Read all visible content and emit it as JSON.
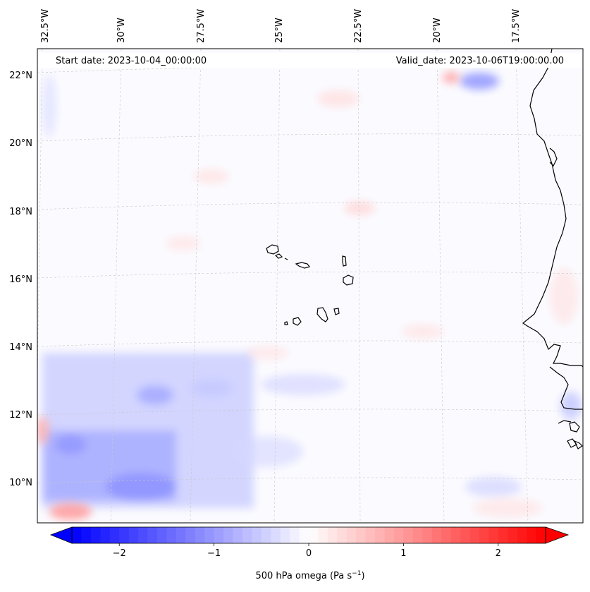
{
  "header": {
    "start_date": "Start date: 2023-10-04_00:00:00",
    "valid_date": "Valid_date: 2023-10-06T19:00:00.00"
  },
  "longitude_labels": [
    "32.5°W",
    "30°W",
    "27.5°W",
    "25°W",
    "22.5°W",
    "20°W",
    "17.5°W"
  ],
  "latitude_labels": [
    "22°N",
    "20°N",
    "18°N",
    "16°N",
    "14°N",
    "12°N",
    "10°N"
  ],
  "colorbar": {
    "ticks": [
      "−2",
      "−1",
      "0",
      "1",
      "2"
    ],
    "tick_values": [
      -2,
      -1,
      0,
      1,
      2
    ],
    "range": [
      -2.5,
      2.5
    ],
    "label": "500 hPa omega (Pa s",
    "label_sup": "−1",
    "label_end": ")",
    "colormap": "bwr",
    "low_color": "#0000ff",
    "mid_color": "#ffffff",
    "high_color": "#ff0000"
  },
  "colors": {
    "coastline": "#000000",
    "gridline": "#c8c8c8"
  }
}
